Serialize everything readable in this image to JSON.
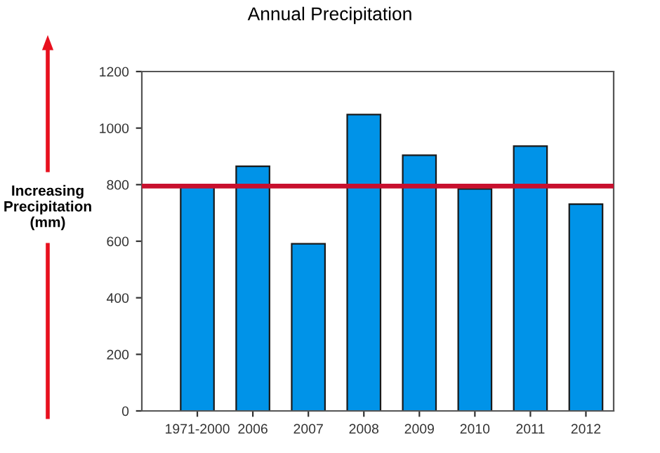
{
  "chart_data": {
    "type": "bar",
    "title": "Annual Precipitation",
    "ylabel": "Increasing\nPrecipitation\n(mm)",
    "categories": [
      "1971-2000",
      "2006",
      "2007",
      "2008",
      "2009",
      "2010",
      "2011",
      "2012"
    ],
    "values": [
      792,
      865,
      591,
      1048,
      904,
      785,
      936,
      731
    ],
    "color": "#0093e8",
    "ylim": [
      0,
      1200
    ],
    "yticks": [
      0,
      200,
      400,
      600,
      800,
      1000,
      1200
    ],
    "ref_lines": [
      {
        "axis": "y",
        "value": 795,
        "color": "#c8102e",
        "line_style": "solid"
      }
    ],
    "grid": false,
    "legend": false
  }
}
